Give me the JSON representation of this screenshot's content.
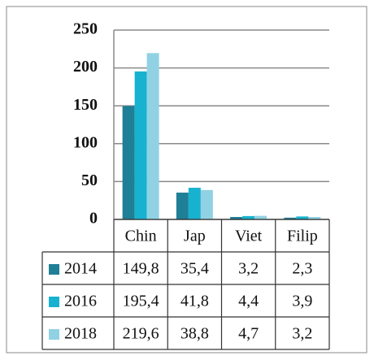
{
  "chart_data": {
    "type": "bar",
    "categories": [
      "Chin",
      "Jap",
      "Viet",
      "Filip"
    ],
    "series": [
      {
        "name": "2014",
        "color": "#1f7f96",
        "values": [
          149.8,
          35.4,
          3.2,
          2.3
        ],
        "value_labels": [
          "149,8",
          "35,4",
          "3,2",
          "2,3"
        ]
      },
      {
        "name": "2016",
        "color": "#17b2cf",
        "values": [
          195.4,
          41.8,
          4.4,
          3.9
        ],
        "value_labels": [
          "195,4",
          "41,8",
          "4,4",
          "3,9"
        ]
      },
      {
        "name": "2018",
        "color": "#90d2e3",
        "values": [
          219.6,
          38.8,
          4.7,
          3.2
        ],
        "value_labels": [
          "219,6",
          "38,8",
          "4,7",
          "3,2"
        ]
      }
    ],
    "ylim": [
      0,
      250
    ],
    "yticks": [
      0,
      50,
      100,
      150,
      200,
      250
    ],
    "grid": true
  }
}
